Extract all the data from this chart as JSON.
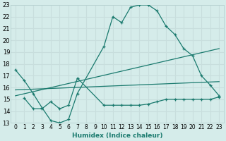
{
  "xlabel": "Humidex (Indice chaleur)",
  "background_color": "#d5ecea",
  "grid_color": "#c8dedd",
  "line_color": "#1a7a6e",
  "xlim": [
    -0.5,
    23.5
  ],
  "ylim": [
    13,
    23
  ],
  "xticks": [
    0,
    1,
    2,
    3,
    4,
    5,
    6,
    7,
    8,
    9,
    10,
    11,
    12,
    13,
    14,
    15,
    16,
    17,
    18,
    19,
    20,
    21,
    22,
    23
  ],
  "yticks": [
    13,
    14,
    15,
    16,
    17,
    18,
    19,
    20,
    21,
    22,
    23
  ],
  "series1_x": [
    0,
    1,
    2,
    3,
    4,
    5,
    6,
    7,
    10,
    11,
    12,
    13,
    14,
    15,
    16,
    17,
    18,
    19,
    20,
    21,
    22,
    23
  ],
  "series1_y": [
    17.5,
    16.6,
    15.5,
    14.3,
    13.2,
    13.0,
    13.3,
    15.5,
    19.5,
    22.0,
    21.5,
    22.8,
    23.0,
    23.0,
    22.5,
    21.2,
    20.5,
    19.3,
    18.7,
    17.0,
    16.2,
    15.3
  ],
  "series2_x": [
    1,
    2,
    3,
    4,
    5,
    6,
    7,
    10,
    11,
    12,
    13,
    14,
    15,
    16,
    17,
    18,
    19,
    20,
    21,
    22,
    23
  ],
  "series2_y": [
    15.1,
    14.2,
    14.2,
    14.8,
    14.2,
    14.5,
    16.8,
    14.5,
    14.5,
    14.5,
    14.5,
    14.5,
    14.6,
    14.8,
    15.0,
    15.0,
    15.0,
    15.0,
    15.0,
    15.0,
    15.2
  ],
  "series3_x": [
    0,
    23
  ],
  "series3_y": [
    15.3,
    19.3
  ],
  "series4_x": [
    0,
    23
  ],
  "series4_y": [
    15.8,
    16.5
  ]
}
